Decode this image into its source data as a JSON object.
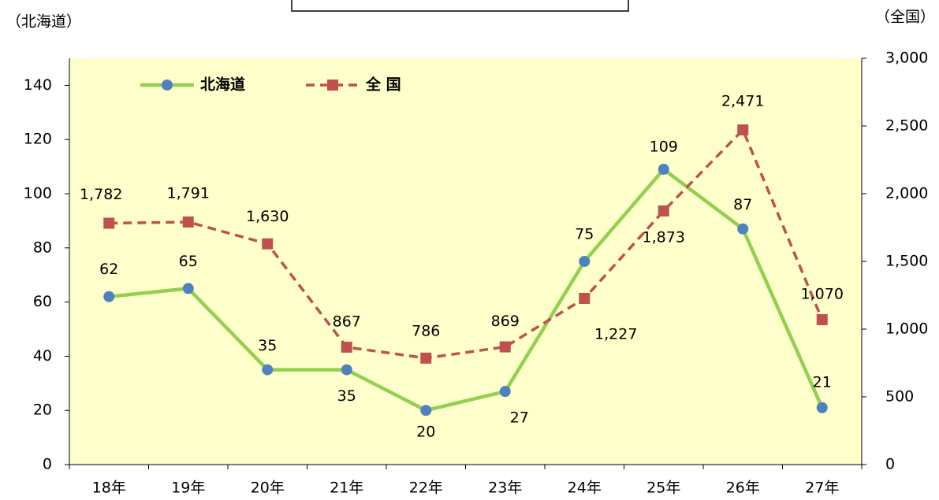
{
  "chart_data": {
    "type": "line",
    "y_label": "（北海道）",
    "y2_label": "（全国）",
    "categories": [
      "18年",
      "19年",
      "20年",
      "21年",
      "22年",
      "23年",
      "24年",
      "25年",
      "26年",
      "27年"
    ],
    "series": [
      {
        "name": "北海道",
        "color": "#92d050",
        "marker_color": "#4f81bd",
        "marker": "circle",
        "dash": false,
        "values": [
          62,
          65,
          35,
          35,
          20,
          27,
          75,
          109,
          87,
          21
        ]
      },
      {
        "name": "全 国",
        "color": "#c0504d",
        "marker_color": "#c0504d",
        "marker": "square",
        "dash": true,
        "axis": "y2",
        "values": [
          1782,
          1791,
          1630,
          867,
          786,
          869,
          1227,
          1873,
          2471,
          1070
        ],
        "value_labels": [
          "1,782",
          "1,791",
          "1,630",
          "867",
          "786",
          "869",
          "1,227",
          "1,873",
          "2,471",
          "1,070"
        ]
      }
    ],
    "ylim": [
      0,
      150
    ],
    "yticks": [
      0,
      20,
      40,
      60,
      80,
      100,
      120,
      140
    ],
    "y2lim": [
      0,
      3000
    ],
    "y2ticks": [
      0,
      500,
      {
        "value": 1000,
        "label": "1,000"
      },
      {
        "value": 1500,
        "label": "1,500"
      },
      {
        "value": 2000,
        "label": "2,000"
      },
      {
        "value": 2500,
        "label": "2,500"
      },
      {
        "value": 3000,
        "label": "3,000"
      }
    ],
    "background": "#ffffcc",
    "grid": false,
    "legend": "upper left"
  }
}
